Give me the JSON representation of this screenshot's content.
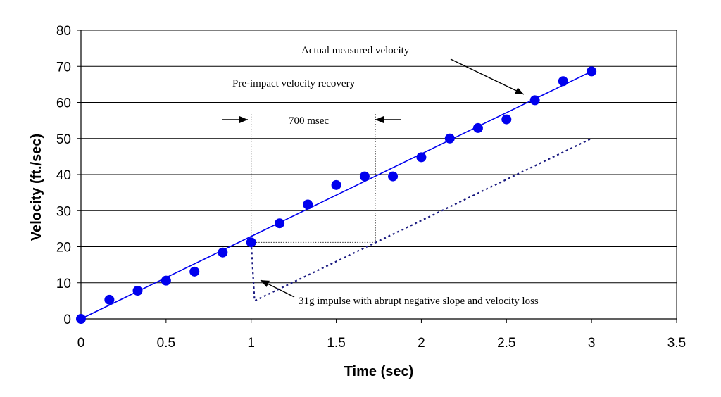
{
  "chart_data": {
    "type": "scatter",
    "xlabel": "Time (sec)",
    "ylabel": "Velocity (ft./sec)",
    "xlim": [
      0,
      3.5
    ],
    "ylim": [
      0,
      80
    ],
    "x_ticks": [
      "0",
      "0.5",
      "1",
      "1.5",
      "2",
      "2.5",
      "3",
      "3.5"
    ],
    "y_ticks": [
      "0",
      "10",
      "20",
      "30",
      "40",
      "50",
      "60",
      "70",
      "80"
    ],
    "grid": "horizontal",
    "legend": "none",
    "series": [
      {
        "kind": "points",
        "color": "#0000ee",
        "x": [
          0,
          0.167,
          0.333,
          0.5,
          0.667,
          0.833,
          1.0,
          1.167,
          1.333,
          1.5,
          1.667,
          1.833,
          2.0,
          2.167,
          2.333,
          2.5,
          2.667,
          2.833,
          3.0
        ],
        "y": [
          0,
          5.3,
          7.8,
          10.6,
          13.1,
          18.4,
          21.2,
          26.5,
          31.7,
          37.1,
          39.5,
          39.5,
          44.8,
          50.0,
          52.9,
          55.3,
          60.6,
          65.9,
          68.6
        ]
      },
      {
        "kind": "fit-line",
        "color": "#0000ee",
        "x": [
          0,
          3.0
        ],
        "y": [
          0,
          68.6
        ]
      },
      {
        "kind": "dotted-trace",
        "color": "#1a1a80",
        "x": [
          1.0,
          1.02,
          3.0
        ],
        "y": [
          21.2,
          5.0,
          50.0
        ]
      }
    ],
    "annotations": [
      {
        "text": "Actual measured velocity"
      },
      {
        "text": "Pre-impact velocity recovery"
      },
      {
        "text": "700 msec"
      },
      {
        "text": "31g impulse with abrupt negative slope and velocity loss"
      }
    ]
  },
  "colors": {
    "marker": "#0000ee",
    "line": "#0000ee",
    "dotted": "#1a1a80"
  }
}
